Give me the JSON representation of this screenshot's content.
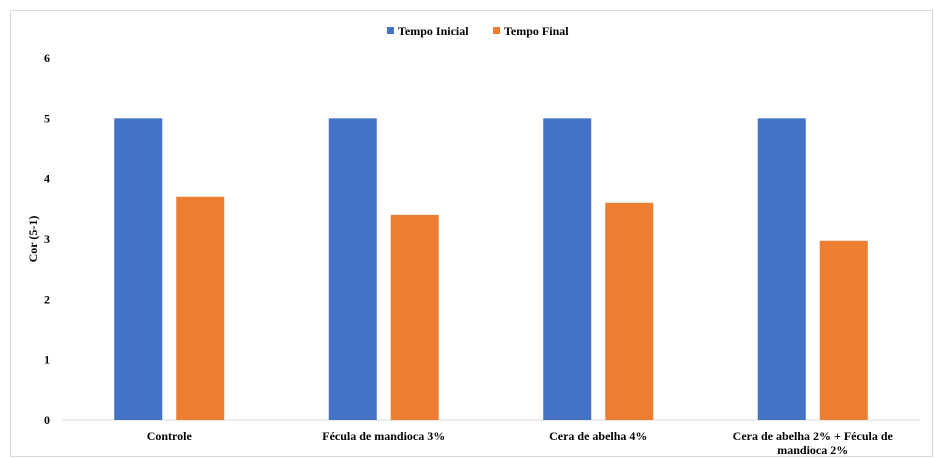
{
  "chart_data": {
    "type": "bar",
    "title": "",
    "xlabel": "",
    "ylabel": "Cor (5-1)",
    "ylim": [
      0,
      6
    ],
    "yticks": [
      0,
      1,
      2,
      3,
      4,
      5,
      6
    ],
    "grid": false,
    "legend_position": "top",
    "categories": [
      [
        "Controle"
      ],
      [
        "Fécula de mandioca 3%"
      ],
      [
        "Cera de abelha 4%"
      ],
      [
        "Cera de abelha 2% + Fécula de",
        "mandioca 2%"
      ]
    ],
    "series": [
      {
        "name": "Tempo Inicial",
        "color": "#4472C4",
        "values": [
          5,
          5,
          5,
          5
        ]
      },
      {
        "name": "Tempo Final",
        "color": "#ED7D31",
        "values": [
          3.7,
          3.4,
          3.6,
          2.97
        ]
      }
    ]
  }
}
